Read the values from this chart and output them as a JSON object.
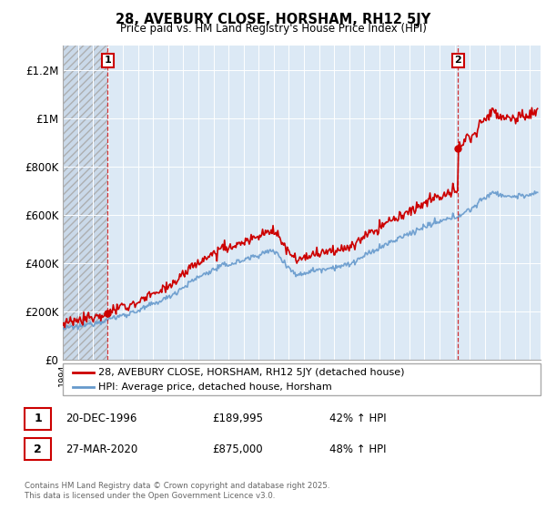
{
  "title": "28, AVEBURY CLOSE, HORSHAM, RH12 5JY",
  "subtitle": "Price paid vs. HM Land Registry's House Price Index (HPI)",
  "ylabel_ticks": [
    "£0",
    "£200K",
    "£400K",
    "£600K",
    "£800K",
    "£1M",
    "£1.2M"
  ],
  "ytick_values": [
    0,
    200000,
    400000,
    600000,
    800000,
    1000000,
    1200000
  ],
  "ylim": [
    0,
    1300000
  ],
  "xlim_start": 1994.0,
  "xlim_end": 2025.7,
  "legend_line1": "28, AVEBURY CLOSE, HORSHAM, RH12 5JY (detached house)",
  "legend_line2": "HPI: Average price, detached house, Horsham",
  "transaction1_date": "20-DEC-1996",
  "transaction1_price": "£189,995",
  "transaction1_hpi": "42% ↑ HPI",
  "transaction2_date": "27-MAR-2020",
  "transaction2_price": "£875,000",
  "transaction2_hpi": "48% ↑ HPI",
  "footer": "Contains HM Land Registry data © Crown copyright and database right 2025.\nThis data is licensed under the Open Government Licence v3.0.",
  "hpi_color": "#6699cc",
  "price_color": "#cc0000",
  "chart_bg_color": "#dce9f5",
  "marker1_year": 1996.97,
  "marker2_year": 2020.23,
  "marker1_price": 189995,
  "marker2_price": 875000,
  "hatch_end_year": 1996.97
}
